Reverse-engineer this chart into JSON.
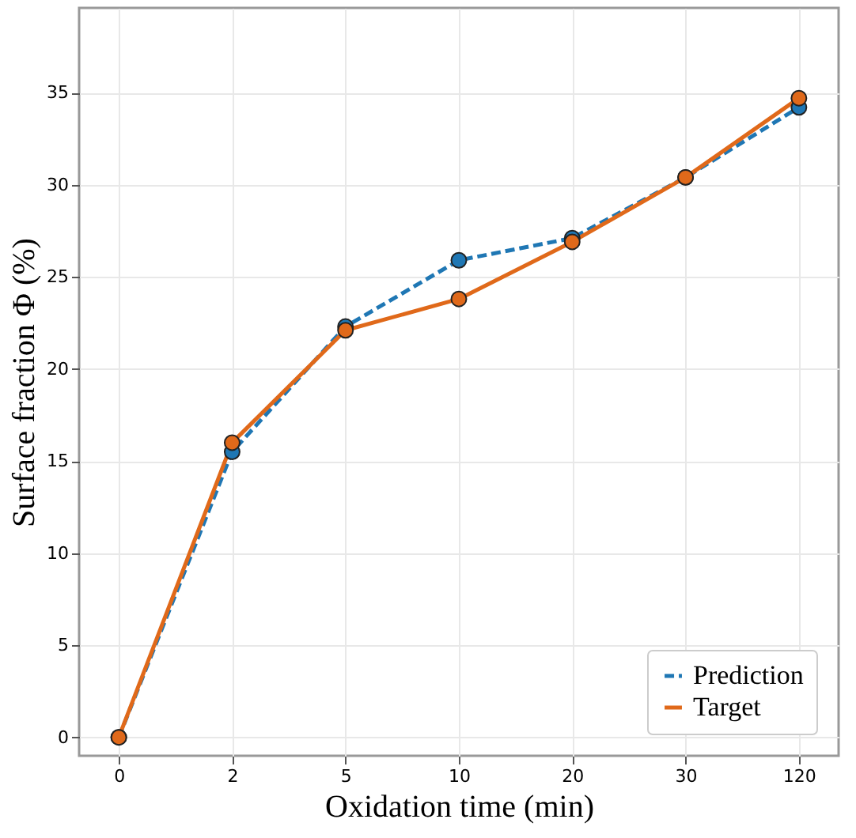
{
  "chart_data": {
    "type": "line",
    "xlabel": "Oxidation time (min)",
    "ylabel": "Surface fraction Φ (%)",
    "categories": [
      "0",
      "2",
      "5",
      "10",
      "20",
      "30",
      "120"
    ],
    "series": [
      {
        "name": "Prediction",
        "color": "#1f77b4",
        "line_style": "dashed",
        "values": [
          0,
          15.5,
          22.3,
          25.9,
          27.1,
          30.4,
          34.2
        ]
      },
      {
        "name": "Target",
        "color": "#e0691a",
        "line_style": "solid",
        "values": [
          0,
          16.0,
          22.1,
          23.8,
          26.9,
          30.4,
          34.7
        ]
      }
    ],
    "ylim": [
      -1,
      39.6
    ],
    "yticks": [
      0,
      5,
      10,
      15,
      20,
      25,
      30,
      35
    ],
    "grid": true,
    "legend": "bottom right",
    "marker": "circle"
  }
}
